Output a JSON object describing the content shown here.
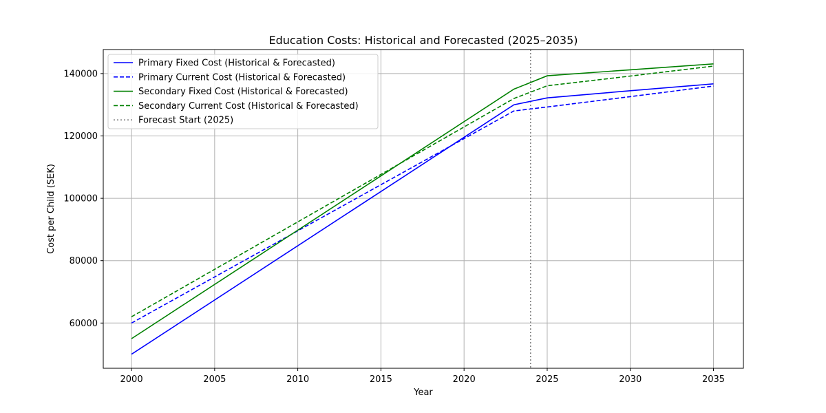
{
  "chart_data": {
    "type": "line",
    "title": "Education Costs: Historical and Forecasted (2025–2035)",
    "xlabel": "Year",
    "ylabel": "Cost per Child (SEK)",
    "xlim": [
      1998.3,
      2036.8
    ],
    "ylim": [
      45500,
      147700
    ],
    "xticks": [
      2000,
      2005,
      2010,
      2015,
      2020,
      2025,
      2030,
      2035
    ],
    "xtick_labels": [
      "2000",
      "2005",
      "2010",
      "2015",
      "2020",
      "2025",
      "2030",
      "2035"
    ],
    "yticks": [
      60000,
      80000,
      100000,
      120000,
      140000
    ],
    "ytick_labels": [
      "60000",
      "80000",
      "100000",
      "120000",
      "140000"
    ],
    "grid": true,
    "legend_position": "top-left",
    "series": [
      {
        "name": "Primary Fixed Cost (Historical & Forecasted)",
        "color": "#0000ff",
        "dash": "solid",
        "x": [
          2000,
          2023,
          2025,
          2030,
          2035
        ],
        "y": [
          50000,
          130000,
          132200,
          134500,
          136700
        ]
      },
      {
        "name": "Primary Current Cost (Historical & Forecasted)",
        "color": "#0000ff",
        "dash": "dashed",
        "x": [
          2000,
          2023,
          2025,
          2030,
          2035
        ],
        "y": [
          60000,
          128000,
          129300,
          132600,
          136000
        ]
      },
      {
        "name": "Secondary Fixed Cost (Historical & Forecasted)",
        "color": "#008000",
        "dash": "solid",
        "x": [
          2000,
          2023,
          2025,
          2030,
          2035
        ],
        "y": [
          55000,
          135000,
          139300,
          141200,
          143100
        ]
      },
      {
        "name": "Secondary Current Cost (Historical & Forecasted)",
        "color": "#008000",
        "dash": "dashed",
        "x": [
          2000,
          2023,
          2025,
          2030,
          2035
        ],
        "y": [
          62000,
          132000,
          136100,
          139200,
          142400
        ]
      }
    ],
    "vline": {
      "name": "Forecast Start (2025)",
      "x": 2024,
      "color": "#808080",
      "dash": "dotted"
    }
  }
}
